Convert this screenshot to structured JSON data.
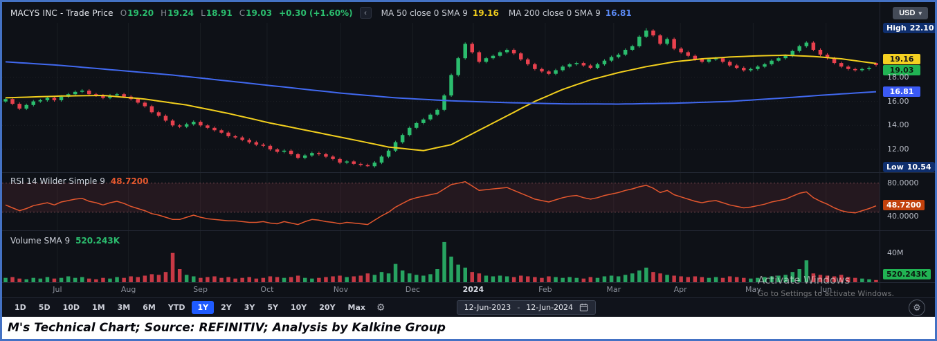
{
  "header": {
    "symbol": "MACYS INC - Trade Price",
    "currency": "USD",
    "ohlc": {
      "o_label": "O",
      "o_value": "19.20",
      "h_label": "H",
      "h_value": "19.24",
      "l_label": "L",
      "l_value": "18.91",
      "c_label": "C",
      "c_value": "19.03",
      "change": "+0.30 (+1.60%)"
    },
    "ma50_label": "MA 50 close 0 SMA 9",
    "ma50_value": "19.16",
    "ma200_label": "MA 200 close 0 SMA 9",
    "ma200_value": "16.81"
  },
  "price_axis": {
    "high_label": "High",
    "high_value": "22.10",
    "badge_ma50": "19.16",
    "badge_last": "19.03",
    "badge_ma200": "16.81",
    "ticks": [
      "18.00",
      "16.00",
      "14.00",
      "12.00"
    ],
    "low_label": "Low",
    "low_value": "10.54"
  },
  "rsi_panel": {
    "label": "RSI 14 Wilder Simple 9",
    "value": "48.7200",
    "axis_upper": "80.0000",
    "axis_lower": "40.0000",
    "badge": "48.7200"
  },
  "volume_panel": {
    "label": "Volume SMA 9",
    "value": "520.243K",
    "axis_tick": "40M",
    "badge": "520.243K"
  },
  "xaxis": {
    "months": [
      {
        "label": "Jul",
        "pos": 0.063
      },
      {
        "label": "Aug",
        "pos": 0.144
      },
      {
        "label": "Sep",
        "pos": 0.226
      },
      {
        "label": "Oct",
        "pos": 0.302
      },
      {
        "label": "Nov",
        "pos": 0.386
      },
      {
        "label": "Dec",
        "pos": 0.468
      },
      {
        "label": "2024",
        "pos": 0.537,
        "bold": true
      },
      {
        "label": "Feb",
        "pos": 0.619
      },
      {
        "label": "Mar",
        "pos": 0.697
      },
      {
        "label": "Apr",
        "pos": 0.773
      },
      {
        "label": "May",
        "pos": 0.856
      },
      {
        "label": "Jun",
        "pos": 0.939
      }
    ]
  },
  "toolbar": {
    "ranges": [
      "1D",
      "5D",
      "10D",
      "1M",
      "3M",
      "6M",
      "YTD",
      "1Y",
      "2Y",
      "3Y",
      "5Y",
      "10Y",
      "20Y",
      "Max"
    ],
    "selected": "1Y",
    "date_from": "12-Jun-2023",
    "date_separator": "-",
    "date_to": "12-Jun-2024"
  },
  "icons": {
    "collapse": "‹",
    "caret_down": "▾",
    "gear": "⚙"
  },
  "watermark": {
    "line1": "Activate Windows",
    "line2": "Go to Settings to activate Windows."
  },
  "caption": "M's Technical Chart; Source: REFINITIV; Analysis by Kalkine Group",
  "colors": {
    "up": "#2bbd6e",
    "down": "#e8414e",
    "ma50": "#f2cf1d",
    "ma200": "#4169f0",
    "rsi": "#e4572e",
    "selected_range": "#1f5bff",
    "frame_border": "#4472c4",
    "background": "#0e1117"
  },
  "chart_data": [
    {
      "type": "candlestick",
      "title": "MACYS INC - Trade Price",
      "date_range": [
        "12-Jun-2023",
        "12-Jun-2024"
      ],
      "ylim": [
        10.1,
        22.55
      ],
      "grid_prices": [
        18,
        16,
        14,
        12
      ],
      "open_first": 16.0,
      "closes": [
        16.2,
        15.8,
        15.4,
        15.7,
        16.0,
        16.1,
        16.3,
        16.1,
        16.4,
        16.6,
        16.8,
        16.9,
        16.6,
        16.5,
        16.3,
        16.5,
        16.6,
        16.4,
        16.2,
        15.9,
        15.6,
        15.1,
        14.8,
        14.4,
        14.0,
        13.9,
        14.1,
        14.3,
        14.0,
        13.8,
        13.6,
        13.4,
        13.1,
        13.0,
        12.8,
        12.6,
        12.4,
        12.3,
        12.0,
        11.8,
        11.9,
        11.6,
        11.3,
        11.5,
        11.7,
        11.6,
        11.4,
        11.2,
        10.9,
        11.0,
        10.8,
        10.7,
        10.6,
        10.9,
        11.4,
        11.9,
        12.6,
        13.2,
        13.8,
        14.2,
        14.5,
        14.9,
        15.3,
        16.5,
        18.2,
        19.6,
        20.8,
        20.1,
        19.3,
        19.6,
        19.8,
        20.1,
        20.3,
        20.0,
        19.5,
        19.1,
        18.7,
        18.5,
        18.3,
        18.6,
        18.9,
        19.1,
        19.2,
        19.0,
        18.8,
        19.1,
        19.4,
        19.7,
        19.9,
        20.3,
        20.6,
        21.4,
        21.9,
        21.5,
        20.8,
        21.2,
        20.4,
        20.1,
        19.8,
        19.5,
        19.3,
        19.5,
        19.6,
        19.3,
        19.0,
        18.8,
        18.6,
        18.7,
        18.9,
        19.1,
        19.4,
        19.6,
        19.8,
        20.2,
        20.6,
        20.9,
        20.3,
        19.9,
        19.6,
        19.2,
        18.9,
        18.7,
        18.6,
        18.7,
        18.8,
        19.03
      ],
      "high_point": {
        "index": 92,
        "value": 22.1
      },
      "low_point": {
        "index": 52,
        "value": 10.54
      },
      "last_candle": {
        "open": 19.2,
        "high": 19.24,
        "low": 18.91,
        "close": 19.03
      },
      "series": [
        {
          "name": "MA 50 close 0 SMA 9",
          "last": 19.16,
          "anchors": [
            [
              0,
              16.3
            ],
            [
              8,
              16.45
            ],
            [
              14,
              16.5
            ],
            [
              20,
              16.2
            ],
            [
              26,
              15.7
            ],
            [
              32,
              15.0
            ],
            [
              38,
              14.2
            ],
            [
              44,
              13.5
            ],
            [
              50,
              12.8
            ],
            [
              55,
              12.2
            ],
            [
              60,
              11.9
            ],
            [
              64,
              12.4
            ],
            [
              68,
              13.6
            ],
            [
              72,
              14.8
            ],
            [
              76,
              16.0
            ],
            [
              80,
              17.0
            ],
            [
              84,
              17.8
            ],
            [
              88,
              18.4
            ],
            [
              92,
              18.9
            ],
            [
              96,
              19.3
            ],
            [
              100,
              19.55
            ],
            [
              104,
              19.7
            ],
            [
              108,
              19.8
            ],
            [
              112,
              19.85
            ],
            [
              116,
              19.75
            ],
            [
              120,
              19.55
            ],
            [
              125,
              19.16
            ]
          ]
        },
        {
          "name": "MA 200 close 0 SMA 9",
          "last": 16.81,
          "anchors": [
            [
              0,
              19.3
            ],
            [
              8,
              19.0
            ],
            [
              16,
              18.6
            ],
            [
              24,
              18.2
            ],
            [
              32,
              17.7
            ],
            [
              40,
              17.2
            ],
            [
              48,
              16.7
            ],
            [
              56,
              16.3
            ],
            [
              64,
              16.05
            ],
            [
              72,
              15.9
            ],
            [
              80,
              15.8
            ],
            [
              88,
              15.78
            ],
            [
              96,
              15.85
            ],
            [
              104,
              16.0
            ],
            [
              112,
              16.3
            ],
            [
              118,
              16.55
            ],
            [
              125,
              16.81
            ]
          ]
        }
      ]
    },
    {
      "type": "line",
      "name": "RSI 14 Wilder Simple 9",
      "last": 48.72,
      "ylim": [
        15,
        95
      ],
      "levels": [
        80,
        40
      ],
      "values": [
        50,
        46,
        42,
        45,
        49,
        51,
        53,
        50,
        54,
        56,
        58,
        59,
        55,
        53,
        50,
        53,
        55,
        52,
        48,
        45,
        42,
        38,
        36,
        33,
        30,
        30,
        33,
        36,
        33,
        31,
        30,
        29,
        28,
        28,
        27,
        26,
        26,
        27,
        25,
        24,
        27,
        25,
        23,
        27,
        30,
        29,
        27,
        26,
        24,
        26,
        25,
        24,
        23,
        29,
        35,
        40,
        47,
        52,
        57,
        60,
        62,
        64,
        66,
        72,
        78,
        80,
        82,
        76,
        70,
        71,
        72,
        73,
        74,
        70,
        66,
        62,
        58,
        56,
        54,
        57,
        60,
        62,
        63,
        60,
        58,
        60,
        63,
        65,
        67,
        70,
        72,
        75,
        77,
        73,
        67,
        70,
        64,
        61,
        58,
        55,
        53,
        55,
        56,
        53,
        50,
        48,
        46,
        47,
        49,
        51,
        54,
        56,
        58,
        62,
        66,
        68,
        60,
        55,
        51,
        46,
        42,
        40,
        39,
        42,
        45,
        48.72
      ]
    },
    {
      "type": "bar",
      "name": "Volume SMA 9",
      "unit": "millions of shares",
      "ylim": [
        0,
        70
      ],
      "ticks": [
        40
      ],
      "sma_last_label": "520.243K",
      "values": [
        6,
        7,
        5,
        4,
        6,
        5,
        7,
        5,
        6,
        8,
        6,
        7,
        5,
        4,
        6,
        5,
        7,
        6,
        8,
        7,
        9,
        11,
        10,
        14,
        40,
        18,
        10,
        8,
        6,
        7,
        8,
        6,
        7,
        5,
        6,
        7,
        5,
        6,
        8,
        7,
        6,
        7,
        9,
        6,
        5,
        6,
        7,
        8,
        9,
        7,
        8,
        9,
        12,
        10,
        14,
        12,
        25,
        16,
        12,
        10,
        9,
        11,
        18,
        55,
        35,
        24,
        20,
        14,
        12,
        9,
        8,
        9,
        8,
        7,
        9,
        8,
        7,
        6,
        8,
        7,
        6,
        7,
        6,
        5,
        7,
        6,
        8,
        9,
        8,
        10,
        12,
        16,
        20,
        14,
        12,
        10,
        9,
        8,
        7,
        8,
        7,
        6,
        7,
        6,
        8,
        7,
        6,
        5,
        6,
        7,
        8,
        9,
        10,
        14,
        18,
        30,
        12,
        10,
        9,
        8,
        10,
        7,
        6,
        5,
        4,
        3
      ]
    }
  ]
}
